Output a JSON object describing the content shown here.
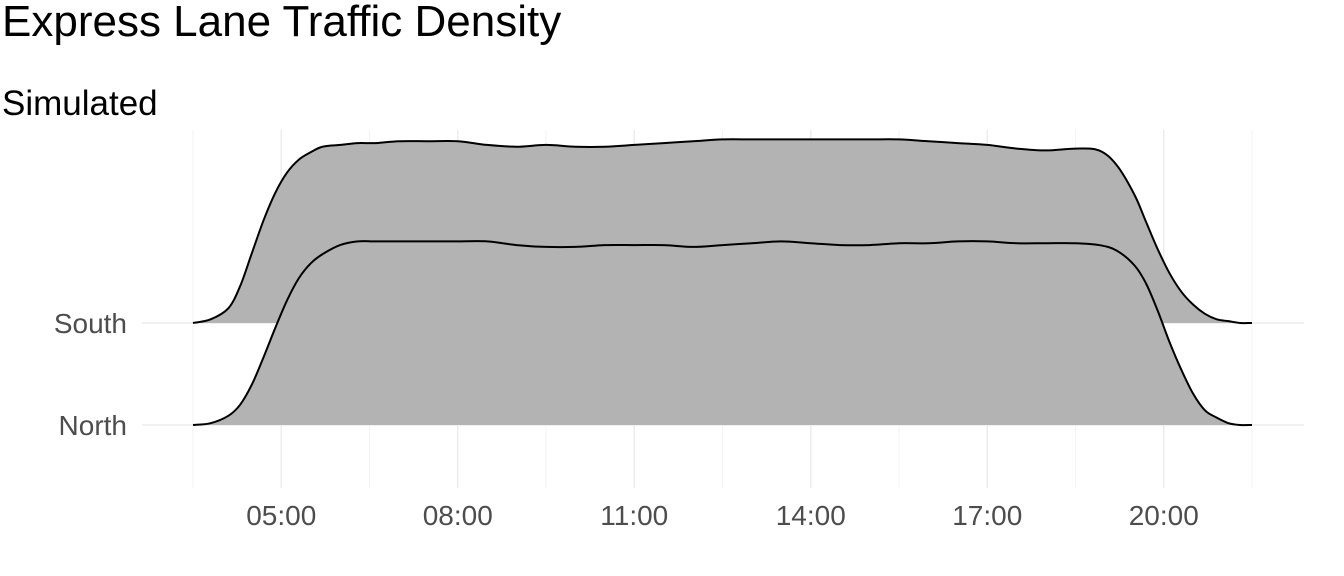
{
  "chart_data": {
    "type": "ridgeline",
    "title": "Express Lane Traffic Density",
    "subtitle": "Simulated",
    "xlabel": "",
    "ylabel": "",
    "x_unit": "hours",
    "xlim": [
      3.5,
      21.5
    ],
    "x_ticks": [
      {
        "value": 5,
        "label": "05:00"
      },
      {
        "value": 8,
        "label": "08:00"
      },
      {
        "value": 11,
        "label": "11:00"
      },
      {
        "value": 14,
        "label": "14:00"
      },
      {
        "value": 17,
        "label": "17:00"
      },
      {
        "value": 20,
        "label": "20:00"
      }
    ],
    "x_minor_ticks": [
      3.5,
      6.5,
      9.5,
      12.5,
      15.5,
      18.5,
      21.5
    ],
    "categories": [
      "North",
      "South"
    ],
    "grid": true,
    "legend": "none",
    "fill_color": "#b3b3b3",
    "line_color": "#000000",
    "ridge_height_scale": 1.8,
    "series": [
      {
        "name": "North",
        "x": [
          3.5,
          3.8,
          4.1,
          4.3,
          4.5,
          4.7,
          4.9,
          5.1,
          5.3,
          5.5,
          5.7,
          6.0,
          6.3,
          6.6,
          7.0,
          7.5,
          8.0,
          8.5,
          9.0,
          9.5,
          10.0,
          10.5,
          11.0,
          11.5,
          12.0,
          12.5,
          13.0,
          13.5,
          14.0,
          14.5,
          15.0,
          15.5,
          16.0,
          16.5,
          17.0,
          17.5,
          18.0,
          18.5,
          18.9,
          19.2,
          19.5,
          19.7,
          19.9,
          20.1,
          20.3,
          20.5,
          20.7,
          20.9,
          21.1,
          21.3,
          21.5
        ],
        "values": [
          0.0,
          0.01,
          0.05,
          0.11,
          0.22,
          0.37,
          0.53,
          0.68,
          0.8,
          0.88,
          0.93,
          0.98,
          1.0,
          1.0,
          1.0,
          1.0,
          1.0,
          1.0,
          0.98,
          0.97,
          0.97,
          0.98,
          0.98,
          0.98,
          0.97,
          0.98,
          0.99,
          1.0,
          0.99,
          0.98,
          0.98,
          0.99,
          0.99,
          1.0,
          1.0,
          0.99,
          0.99,
          0.99,
          0.98,
          0.95,
          0.87,
          0.77,
          0.62,
          0.45,
          0.3,
          0.17,
          0.08,
          0.04,
          0.01,
          0.0,
          0.0
        ]
      },
      {
        "name": "South",
        "x": [
          3.5,
          3.8,
          4.1,
          4.3,
          4.5,
          4.7,
          4.9,
          5.1,
          5.3,
          5.5,
          5.7,
          6.0,
          6.3,
          6.6,
          7.0,
          7.5,
          8.0,
          8.5,
          9.0,
          9.5,
          10.0,
          10.5,
          11.0,
          11.5,
          12.0,
          12.5,
          13.0,
          13.5,
          14.0,
          14.5,
          15.0,
          15.5,
          16.0,
          16.5,
          17.0,
          17.5,
          18.0,
          18.5,
          18.9,
          19.2,
          19.5,
          19.7,
          19.9,
          20.1,
          20.3,
          20.5,
          20.7,
          20.9,
          21.1,
          21.3,
          21.5
        ],
        "values": [
          0.0,
          0.02,
          0.08,
          0.2,
          0.38,
          0.56,
          0.71,
          0.82,
          0.89,
          0.93,
          0.96,
          0.97,
          0.98,
          0.98,
          0.99,
          0.99,
          0.99,
          0.97,
          0.96,
          0.97,
          0.96,
          0.96,
          0.97,
          0.98,
          0.99,
          1.0,
          1.0,
          1.0,
          1.0,
          1.0,
          1.0,
          1.0,
          0.99,
          0.98,
          0.97,
          0.95,
          0.94,
          0.95,
          0.94,
          0.86,
          0.7,
          0.55,
          0.4,
          0.27,
          0.17,
          0.1,
          0.05,
          0.02,
          0.01,
          0.0,
          0.0
        ]
      }
    ]
  }
}
